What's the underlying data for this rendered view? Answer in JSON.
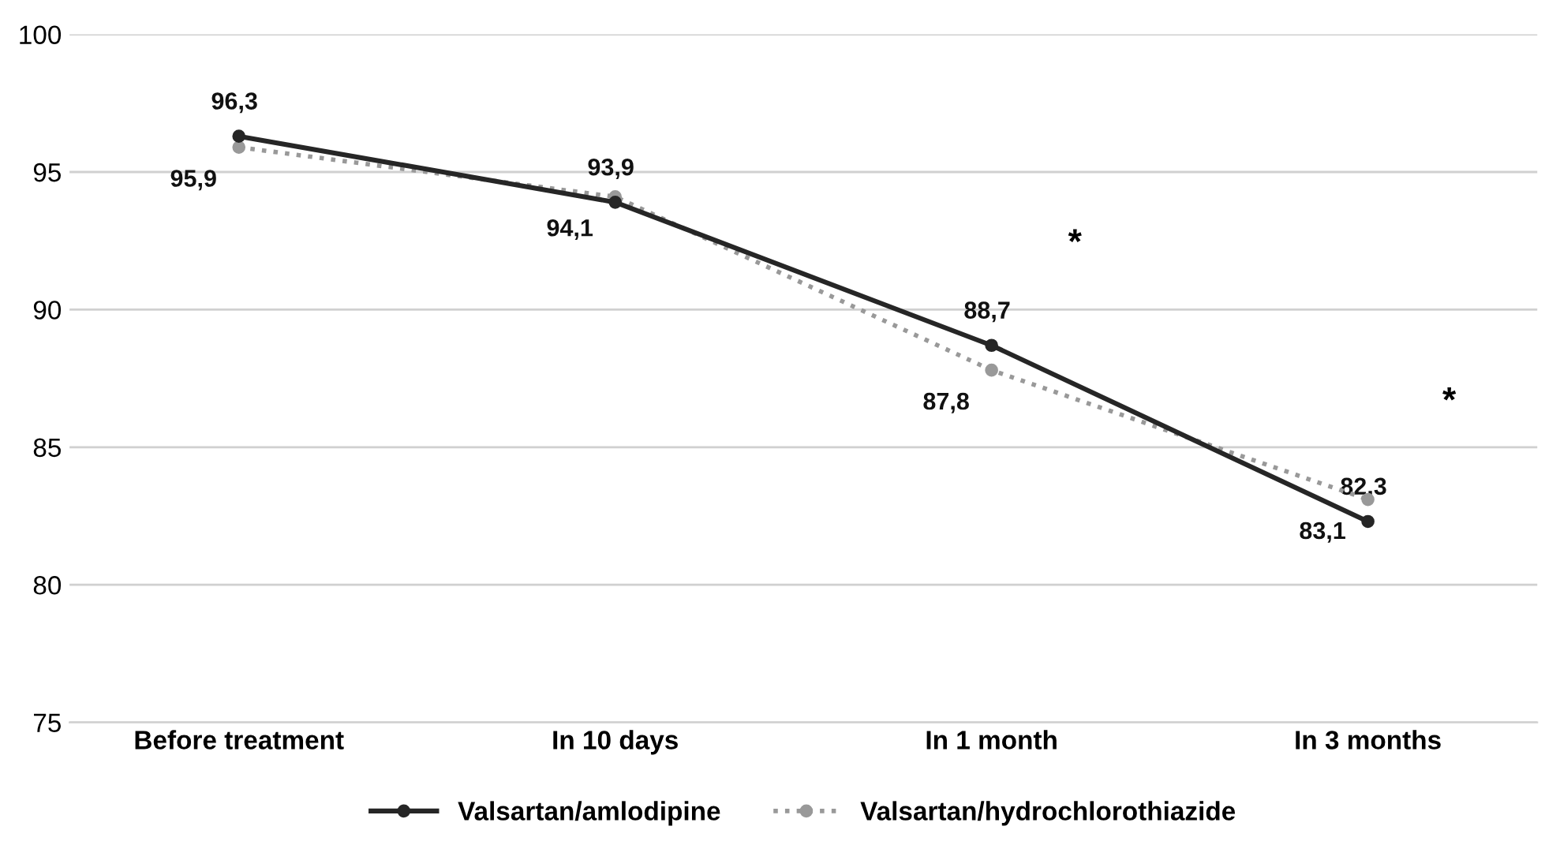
{
  "chart_data": {
    "type": "line",
    "categories": [
      "Before treatment",
      "In 10 days",
      "In 1 month",
      "In 3 months"
    ],
    "series": [
      {
        "name": "Valsartan/amlodipine",
        "color": "#262626",
        "line_style": "solid",
        "values": [
          96.3,
          93.9,
          88.7,
          82.3
        ],
        "value_labels": [
          "96,3",
          "93,9",
          "88,7",
          "82,3"
        ]
      },
      {
        "name": "Valsartan/hydrochlorothiazide",
        "color": "#999999",
        "line_style": "dotted",
        "values": [
          95.9,
          94.1,
          87.8,
          83.1
        ],
        "value_labels": [
          "95,9",
          "94,1",
          "87,8",
          "83,1"
        ]
      }
    ],
    "ylim": [
      75,
      100
    ],
    "yticks": [
      75,
      80,
      85,
      90,
      95,
      100
    ],
    "grid": "y",
    "legend": "bottom",
    "marker": "circle",
    "annotations": [
      "*",
      "*"
    ]
  }
}
